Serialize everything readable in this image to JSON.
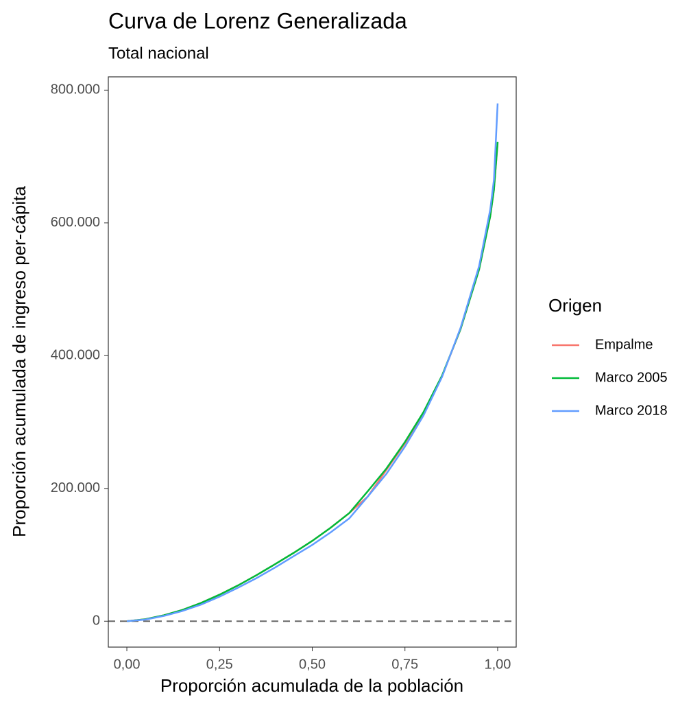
{
  "chart_data": {
    "type": "line",
    "title": "Curva de Lorenz Generalizada",
    "subtitle": "Total nacional",
    "x_label": "Proporción acumulada de la población",
    "y_label": "Proporción acumulada de ingreso per-cápita",
    "legend_title": "Origen",
    "legend_position": "right",
    "x": [
      0,
      0.05,
      0.1,
      0.15,
      0.2,
      0.25,
      0.3,
      0.35,
      0.4,
      0.45,
      0.5,
      0.55,
      0.6,
      0.65,
      0.7,
      0.75,
      0.8,
      0.85,
      0.9,
      0.95,
      0.98,
      0.99,
      1
    ],
    "series": [
      {
        "name": "Empalme",
        "color": "#f8766d",
        "values": [
          0,
          3000,
          9000,
          17000,
          27500,
          40000,
          54000,
          69500,
          86000,
          103000,
          121000,
          141000,
          163000,
          188000,
          228000,
          268000,
          313000,
          369000,
          440000,
          530000,
          610000,
          650000,
          720000
        ]
      },
      {
        "name": "Marco 2005",
        "color": "#00ba38",
        "values": [
          0,
          3000,
          9000,
          17000,
          27500,
          40000,
          54000,
          69500,
          86000,
          103000,
          121000,
          141000,
          163000,
          196000,
          230000,
          270000,
          315000,
          370000,
          440000,
          530000,
          610000,
          650000,
          722000
        ]
      },
      {
        "name": "Marco 2018",
        "color": "#619cff",
        "values": [
          0,
          2500,
          8000,
          15500,
          25000,
          37000,
          50500,
          65000,
          81000,
          98000,
          115000,
          134000,
          155000,
          188000,
          222000,
          263000,
          310000,
          368000,
          442000,
          535000,
          620000,
          665000,
          780000
        ]
      }
    ],
    "hline": 0,
    "xlim": [
      -0.05,
      1.05
    ],
    "ylim": [
      -39000,
      820000
    ],
    "xticks": [
      {
        "value": 0,
        "label": "0,00"
      },
      {
        "value": 0.25,
        "label": "0,25"
      },
      {
        "value": 0.5,
        "label": "0,50"
      },
      {
        "value": 0.75,
        "label": "0,75"
      },
      {
        "value": 1,
        "label": "1,00"
      }
    ],
    "yticks": [
      0,
      {
        "value": 200000,
        "label": "200.000"
      },
      {
        "value": 400000,
        "label": "400.000"
      },
      {
        "value": 600000,
        "label": "600.000"
      },
      {
        "value": 800000,
        "label": "800.000"
      }
    ],
    "grid": false
  }
}
